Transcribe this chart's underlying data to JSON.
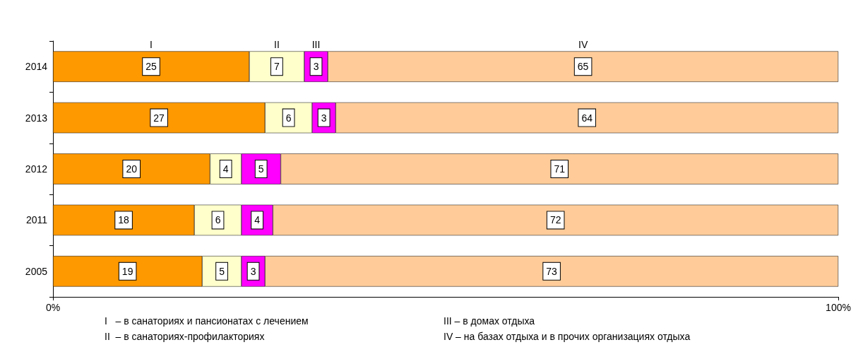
{
  "chart_data": {
    "type": "bar",
    "orientation": "horizontal",
    "stacked": true,
    "categories": [
      "2014",
      "2013",
      "2012",
      "2011",
      "2005"
    ],
    "series": [
      {
        "name": "I",
        "color": "#ff9900",
        "values": [
          25,
          27,
          20,
          18,
          19
        ]
      },
      {
        "name": "II",
        "color": "#ffffcc",
        "values": [
          7,
          6,
          4,
          6,
          5
        ]
      },
      {
        "name": "III",
        "color": "#ff00ff",
        "values": [
          3,
          3,
          5,
          4,
          3
        ]
      },
      {
        "name": "IV",
        "color": "#ffcc99",
        "values": [
          65,
          64,
          71,
          72,
          73
        ]
      }
    ],
    "xlim": [
      0,
      100
    ],
    "xticks": [
      {
        "value": 0,
        "label": "0%"
      },
      {
        "value": 100,
        "label": "100%"
      }
    ],
    "data_labels": true,
    "grid": false,
    "legend": false,
    "annotations": [
      "I   – в санаториях и пансионатах с лечением",
      "III – в домах отдыха",
      "II  – в санаториях-профилакториях",
      "IV – на базах отдыха и в прочих организациях отдыха"
    ]
  }
}
